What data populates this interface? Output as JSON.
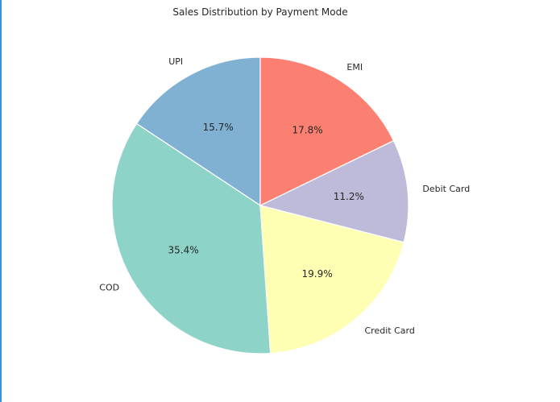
{
  "chart_data": {
    "type": "pie",
    "title": "Sales Distribution by Payment Mode",
    "categories": [
      "UPI",
      "COD",
      "Credit Card",
      "Debit Card",
      "EMI"
    ],
    "values": [
      15.7,
      35.4,
      19.9,
      11.2,
      17.8
    ],
    "value_labels": [
      "15.7%",
      "35.4%",
      "19.9%",
      "11.2%",
      "17.8%"
    ],
    "colors": [
      "#80b1d3",
      "#8dd3c7",
      "#ffffb3",
      "#bebada",
      "#fb8072"
    ],
    "start_angle_deg": 90,
    "direction": "counterclockwise",
    "legend": "none"
  }
}
